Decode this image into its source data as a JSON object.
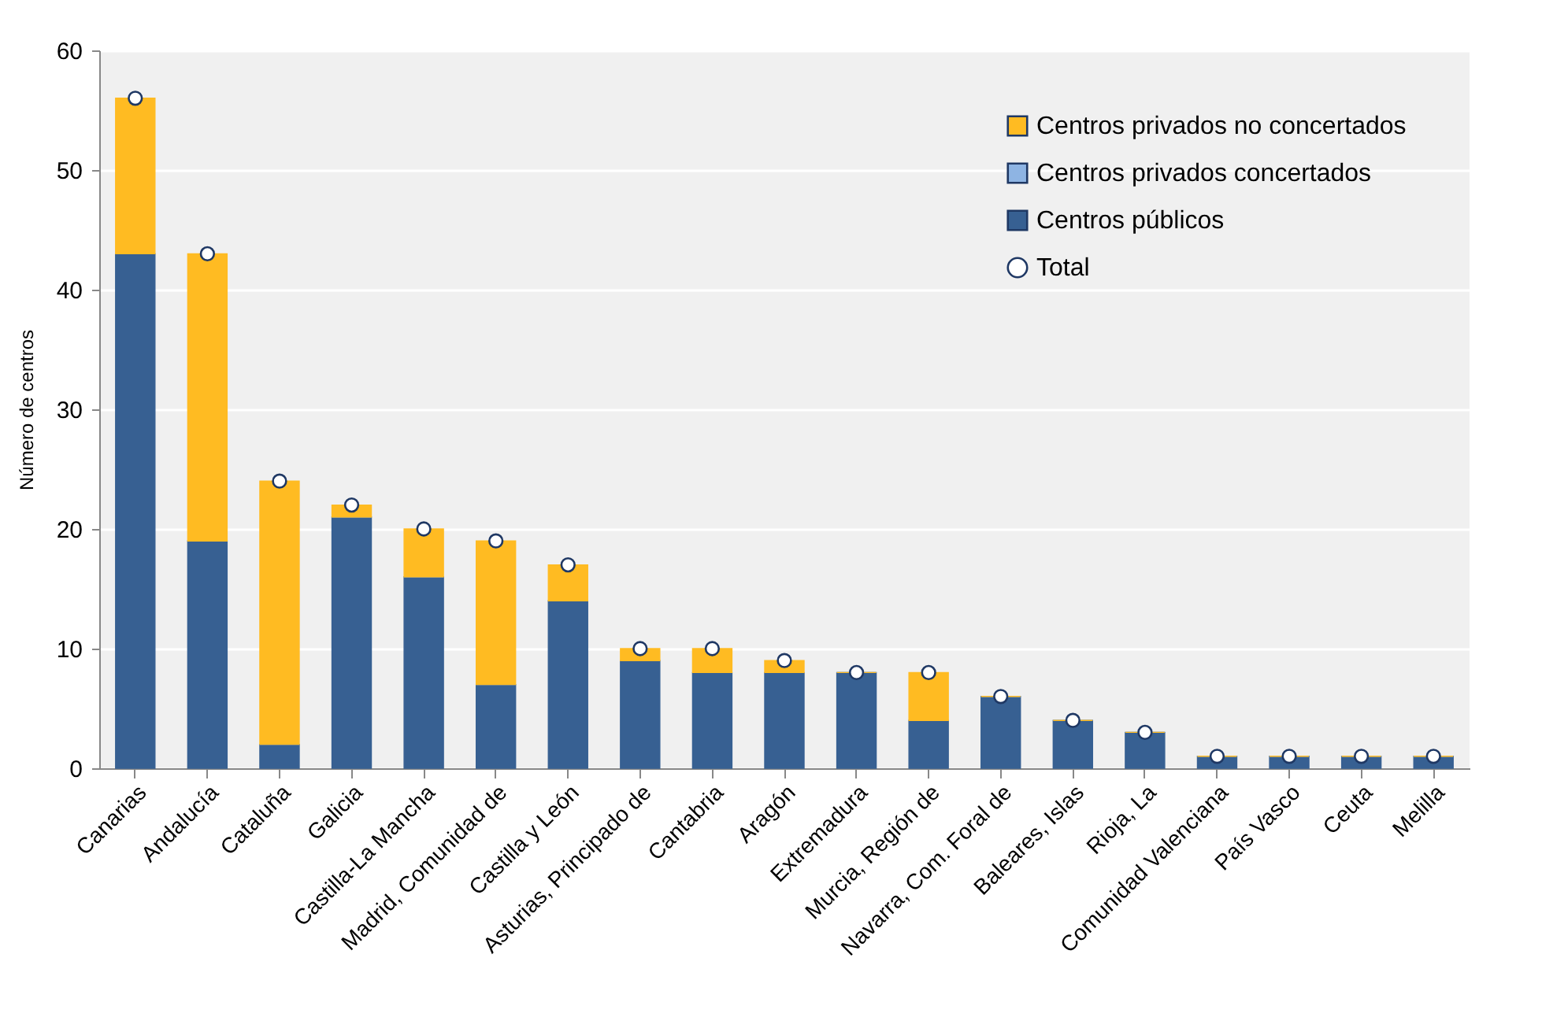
{
  "chart_data": {
    "type": "bar",
    "stacked": true,
    "ylabel": "Número de centros",
    "categories": [
      "Canarias",
      "Andalucía",
      "Cataluña",
      "Galicia",
      "Castilla-La Mancha",
      "Madrid, Comunidad de",
      "Castilla y León",
      "Asturias, Principado de",
      "Cantabria",
      "Aragón",
      "Extremadura",
      "Murcia, Región de",
      "Navarra, Com. Foral de",
      "Baleares, Islas",
      "Rioja, La",
      "Comunidad Valenciana",
      "País Vasco",
      "Ceuta",
      "Melilla"
    ],
    "series": [
      {
        "name": "Centros públicos",
        "color": "#376092",
        "values": [
          43,
          19,
          2,
          21,
          16,
          7,
          14,
          9,
          8,
          8,
          8,
          4,
          6,
          4,
          3,
          1,
          1,
          1,
          1
        ]
      },
      {
        "name": "Centros privados concertados",
        "color": "#8eb4e3",
        "values": [
          0,
          0,
          0,
          0,
          0,
          0,
          0,
          0,
          0,
          0,
          0,
          0,
          0,
          0,
          0,
          0,
          0,
          0,
          0
        ]
      },
      {
        "name": "Centros privados no concertados",
        "color": "#ffbb22",
        "values": [
          13,
          24,
          22,
          1,
          4,
          12,
          3,
          1,
          2,
          1,
          0,
          4,
          0,
          0,
          0,
          0,
          0,
          0,
          0
        ]
      },
      {
        "name": "Total",
        "type": "scatter",
        "color": "#ffffff",
        "values": [
          56,
          43,
          24,
          22,
          20,
          19,
          17,
          10,
          10,
          9,
          8,
          8,
          6,
          4,
          3,
          1,
          1,
          1,
          1
        ]
      }
    ],
    "ylim": [
      0,
      60
    ],
    "yticks": [
      0,
      10,
      20,
      30,
      40,
      50,
      60
    ],
    "grid": "y",
    "legend": "top right",
    "marker": "circle"
  }
}
